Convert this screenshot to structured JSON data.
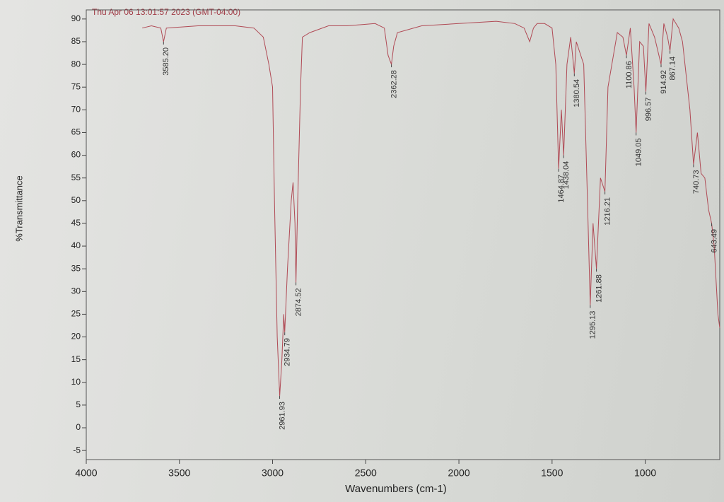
{
  "chart_data": {
    "type": "line",
    "subtitle": "Thu Apr 06 13:01:57 2023 (GMT-04:00)",
    "xlabel": "Wavenumbers (cm-1)",
    "ylabel": "%Transmittance",
    "xlim": [
      4000,
      600
    ],
    "xticks": [
      4000,
      3500,
      3000,
      2500,
      2000,
      1500,
      1000
    ],
    "ylim": [
      -7,
      92
    ],
    "yticks": [
      -5,
      0,
      5,
      10,
      15,
      20,
      25,
      30,
      35,
      40,
      45,
      50,
      55,
      60,
      65,
      70,
      75,
      80,
      85,
      90
    ],
    "x": [
      3700,
      3650,
      3600,
      3585.2,
      3570,
      3400,
      3200,
      3100,
      3050,
      3020,
      3000,
      2990,
      2975,
      2961.93,
      2950,
      2940,
      2934.79,
      2920,
      2900,
      2890,
      2880,
      2874.52,
      2865,
      2850,
      2840,
      2800,
      2700,
      2600,
      2450,
      2400,
      2380,
      2362.28,
      2350,
      2330,
      2200,
      2000,
      1800,
      1700,
      1650,
      1620,
      1600,
      1580,
      1540,
      1500,
      1480,
      1464.87,
      1450,
      1438.04,
      1420,
      1400,
      1390,
      1380.54,
      1370,
      1330,
      1310,
      1295.13,
      1280,
      1261.88,
      1240,
      1216.21,
      1200,
      1150,
      1120,
      1100.86,
      1080,
      1060,
      1049.05,
      1030,
      1010,
      996.57,
      980,
      950,
      914.92,
      900,
      880,
      867.14,
      850,
      820,
      800,
      760,
      740.73,
      720,
      700,
      680,
      660,
      643.49,
      630,
      610,
      600
    ],
    "series": [
      {
        "name": "%Transmittance",
        "color": "#b04a55",
        "values": [
          88,
          88.5,
          88,
          85,
          88,
          88.5,
          88.5,
          88,
          86,
          80,
          75,
          50,
          20,
          7,
          15,
          25,
          21,
          35,
          50,
          54,
          45,
          32,
          50,
          75,
          86,
          87,
          88.5,
          88.5,
          89,
          88,
          82,
          80,
          84,
          87,
          88.5,
          89,
          89.5,
          89,
          88,
          85,
          88,
          89,
          89,
          88,
          80,
          57,
          70,
          60,
          80,
          86,
          82,
          78,
          85,
          80,
          50,
          27,
          45,
          35,
          55,
          52,
          75,
          87,
          86,
          82,
          88,
          75,
          65,
          85,
          84,
          74,
          89,
          86,
          80,
          89,
          86,
          83,
          90,
          88,
          85,
          70,
          58,
          65,
          56,
          55,
          48,
          45,
          40,
          25,
          22
        ]
      }
    ],
    "annotations": [
      {
        "x": 3585.2,
        "label": "3585.20"
      },
      {
        "x": 2961.93,
        "label": "2961.93"
      },
      {
        "x": 2934.79,
        "label": "2934.79"
      },
      {
        "x": 2874.52,
        "label": "2874.52"
      },
      {
        "x": 2362.28,
        "label": "2362.28"
      },
      {
        "x": 1464.87,
        "label": "1464.87"
      },
      {
        "x": 1438.04,
        "label": "1438.04"
      },
      {
        "x": 1380.54,
        "label": "1380.54"
      },
      {
        "x": 1295.13,
        "label": "1295.13"
      },
      {
        "x": 1261.88,
        "label": "1261.88"
      },
      {
        "x": 1216.21,
        "label": "1216.21"
      },
      {
        "x": 1100.86,
        "label": "1100.86"
      },
      {
        "x": 1049.05,
        "label": "1049.05"
      },
      {
        "x": 996.57,
        "label": "996.57"
      },
      {
        "x": 914.92,
        "label": "914.92"
      },
      {
        "x": 867.14,
        "label": "867.14"
      },
      {
        "x": 740.73,
        "label": "740.73"
      },
      {
        "x": 643.49,
        "label": "643.49"
      }
    ]
  }
}
